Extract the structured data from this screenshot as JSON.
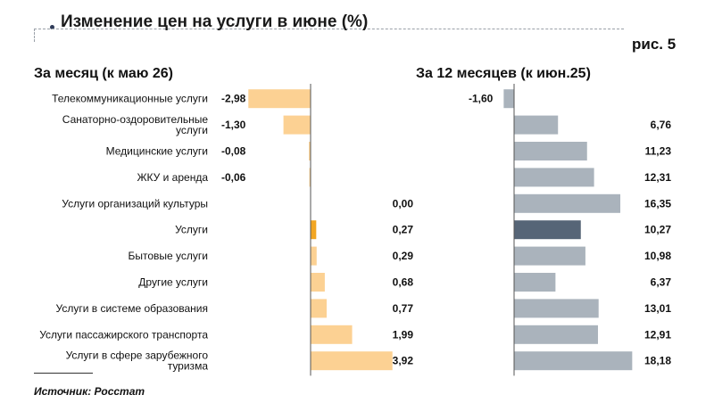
{
  "header": {
    "title": "Изменение цен на услуги в июне (%)",
    "figure_label": "рис. 5"
  },
  "source": "Источник: Росстат",
  "chart_data": [
    {
      "type": "bar",
      "orientation": "horizontal",
      "title": "За месяц (к маю 26)",
      "categories": [
        [
          "Телекоммуникационные услуги"
        ],
        [
          "Санаторно-оздоровительные",
          "услуги"
        ],
        [
          "Медицинские услуги"
        ],
        [
          "ЖКУ и аренда"
        ],
        [
          "Услуги организаций культуры"
        ],
        [
          "Услуги"
        ],
        [
          "Бытовые услуги"
        ],
        [
          "Другие услуги"
        ],
        [
          "Услуги в системе образования"
        ],
        [
          "Услуги пассажирского транспорта"
        ],
        [
          "Услуги в сфере зарубежного",
          "туризма"
        ]
      ],
      "values": [
        -2.98,
        -1.3,
        -0.08,
        -0.06,
        0.0,
        0.27,
        0.29,
        0.68,
        0.77,
        1.99,
        3.92
      ],
      "value_labels": [
        "-2,98",
        "-1,30",
        "-0,08",
        "-0,06",
        "0,00",
        "0,27",
        "0,29",
        "0,68",
        "0,77",
        "1,99",
        "3,92"
      ],
      "highlight_index": 5,
      "colors": {
        "bar": "#fcd193",
        "highlight": "#f2a623",
        "axis": "#555555"
      }
    },
    {
      "type": "bar",
      "orientation": "horizontal",
      "title": "За 12 месяцев (к июн.25)",
      "values": [
        -1.6,
        6.76,
        11.23,
        12.31,
        16.35,
        10.27,
        10.98,
        6.37,
        13.01,
        12.91,
        18.18
      ],
      "value_labels": [
        "-1,60",
        "6,76",
        "11,23",
        "12,31",
        "16,35",
        "10,27",
        "10,98",
        "6,37",
        "13,01",
        "12,91",
        "18,18"
      ],
      "highlight_index": 5,
      "colors": {
        "bar": "#aab3bc",
        "highlight": "#566577",
        "axis": "#555555"
      }
    }
  ]
}
